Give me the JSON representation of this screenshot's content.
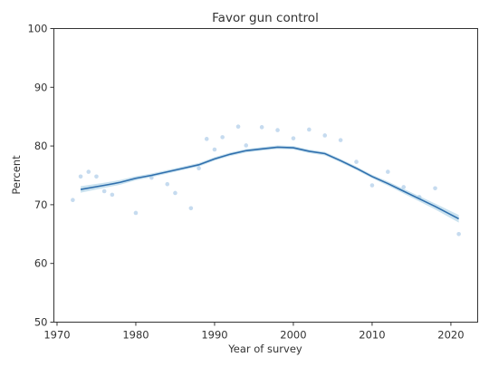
{
  "chart_data": {
    "type": "line",
    "title": "Favor gun control",
    "xlabel": "Year of survey",
    "ylabel": "Percent",
    "xlim": [
      1969.6,
      2023.4
    ],
    "ylim": [
      50,
      100
    ],
    "x_ticks": [
      1970,
      1980,
      1990,
      2000,
      2010,
      2020
    ],
    "y_ticks": [
      50,
      60,
      70,
      80,
      90,
      100
    ],
    "grid": false,
    "legend": "none",
    "colors": {
      "points": "#c6dbef",
      "line": "#2f6fad",
      "band": "#9ecae1",
      "axis": "#333333"
    },
    "series": [
      {
        "type": "scatter",
        "points": [
          [
            1972,
            70.8
          ],
          [
            1973,
            74.8
          ],
          [
            1974,
            75.6
          ],
          [
            1975,
            74.8
          ],
          [
            1976,
            72.3
          ],
          [
            1977,
            71.7
          ],
          [
            1980,
            68.6
          ],
          [
            1982,
            74.6
          ],
          [
            1984,
            73.5
          ],
          [
            1985,
            72.0
          ],
          [
            1987,
            69.4
          ],
          [
            1988,
            76.2
          ],
          [
            1989,
            81.2
          ],
          [
            1990,
            79.4
          ],
          [
            1991,
            81.5
          ],
          [
            1993,
            83.3
          ],
          [
            1994,
            80.1
          ],
          [
            1996,
            83.2
          ],
          [
            1998,
            82.7
          ],
          [
            2000,
            81.3
          ],
          [
            2002,
            82.8
          ],
          [
            2004,
            81.8
          ],
          [
            2006,
            81.0
          ],
          [
            2008,
            77.3
          ],
          [
            2010,
            73.3
          ],
          [
            2012,
            75.6
          ],
          [
            2014,
            73.0
          ],
          [
            2016,
            71.3
          ],
          [
            2018,
            72.8
          ],
          [
            2021,
            65.0
          ]
        ]
      },
      {
        "type": "line",
        "points": [
          [
            1973,
            72.6
          ],
          [
            1976,
            73.3
          ],
          [
            1978,
            73.8
          ],
          [
            1980,
            74.5
          ],
          [
            1982,
            75.0
          ],
          [
            1984,
            75.6
          ],
          [
            1986,
            76.2
          ],
          [
            1988,
            76.8
          ],
          [
            1990,
            77.8
          ],
          [
            1992,
            78.6
          ],
          [
            1994,
            79.2
          ],
          [
            1996,
            79.5
          ],
          [
            1998,
            79.8
          ],
          [
            2000,
            79.7
          ],
          [
            2002,
            79.1
          ],
          [
            2004,
            78.7
          ],
          [
            2006,
            77.5
          ],
          [
            2008,
            76.2
          ],
          [
            2010,
            74.8
          ],
          [
            2012,
            73.6
          ],
          [
            2014,
            72.3
          ],
          [
            2016,
            71.0
          ],
          [
            2018,
            69.7
          ],
          [
            2021,
            67.6
          ]
        ],
        "band_halfwidth": [
          0.55,
          0.45,
          0.4,
          0.35,
          0.3,
          0.3,
          0.3,
          0.3,
          0.3,
          0.3,
          0.3,
          0.3,
          0.3,
          0.3,
          0.3,
          0.3,
          0.3,
          0.3,
          0.3,
          0.35,
          0.4,
          0.45,
          0.5,
          0.65
        ]
      }
    ]
  }
}
